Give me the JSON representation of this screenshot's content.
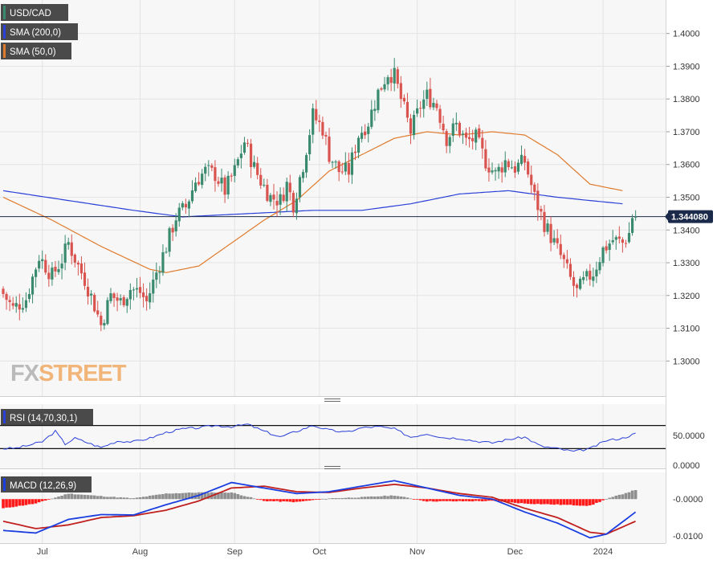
{
  "symbol_label": "USD/CAD",
  "watermark": {
    "fx": "FX",
    "street": "STREET"
  },
  "colors": {
    "bull": "#3a8a6e",
    "bear": "#d9534f",
    "sma200": "#2a40d8",
    "sma50": "#e07b2e",
    "rsi": "#2a40d8",
    "macd": "#1a3ee0",
    "signal": "#c0201e",
    "hist_pos": "#8f8f8f",
    "hist_neg": "#ff1a1a",
    "label_bg": "#4a4a4a",
    "grid": "#e4e4e4",
    "panel_bg": "#f7f7f7"
  },
  "legend": [
    {
      "text": "USD/CAD",
      "color": "#3a8a6e"
    },
    {
      "text": "SMA (200,0)",
      "color": "#2a40d8"
    },
    {
      "text": "SMA (50,0)",
      "color": "#e07b2e"
    }
  ],
  "price_tag": "1.344080",
  "rsi_label": "RSI (14,70,30,1)",
  "macd_label": "MACD (12,26,9)",
  "chart_data": [
    {
      "type": "candlestick",
      "title": "USD/CAD",
      "x_labels": [
        "Jul",
        "Aug",
        "Sep",
        "Oct",
        "Nov",
        "Dec",
        "2024"
      ],
      "y_ticks": [
        "1.4000",
        "1.3900",
        "1.3800",
        "1.3700",
        "1.3600",
        "1.3500",
        "1.3400",
        "1.3300",
        "1.3200",
        "1.3100",
        "1.3000"
      ],
      "ylim": [
        1.291,
        1.409
      ],
      "last_price": 1.34408,
      "anchors": [
        [
          0,
          1.322
        ],
        [
          4,
          1.316
        ],
        [
          8,
          1.319
        ],
        [
          12,
          1.332
        ],
        [
          16,
          1.326
        ],
        [
          19,
          1.331
        ],
        [
          21,
          1.336
        ],
        [
          24,
          1.329
        ],
        [
          26,
          1.325
        ],
        [
          29,
          1.317
        ],
        [
          31,
          1.311
        ],
        [
          34,
          1.32
        ],
        [
          37,
          1.318
        ],
        [
          40,
          1.322
        ],
        [
          43,
          1.321
        ],
        [
          45,
          1.318
        ],
        [
          48,
          1.327
        ],
        [
          51,
          1.335
        ],
        [
          54,
          1.344
        ],
        [
          57,
          1.347
        ],
        [
          60,
          1.355
        ],
        [
          63,
          1.358
        ],
        [
          66,
          1.357
        ],
        [
          69,
          1.352
        ],
        [
          72,
          1.358
        ],
        [
          75,
          1.367
        ],
        [
          78,
          1.359
        ],
        [
          80,
          1.355
        ],
        [
          83,
          1.35
        ],
        [
          86,
          1.349
        ],
        [
          88,
          1.354
        ],
        [
          90,
          1.348
        ],
        [
          93,
          1.36
        ],
        [
          96,
          1.375
        ],
        [
          99,
          1.371
        ],
        [
          101,
          1.363
        ],
        [
          104,
          1.358
        ],
        [
          107,
          1.358
        ],
        [
          110,
          1.369
        ],
        [
          113,
          1.373
        ],
        [
          116,
          1.382
        ],
        [
          119,
          1.388
        ],
        [
          121,
          1.387
        ],
        [
          123,
          1.38
        ],
        [
          126,
          1.37
        ],
        [
          129,
          1.378
        ],
        [
          131,
          1.381
        ],
        [
          134,
          1.378
        ],
        [
          137,
          1.368
        ],
        [
          140,
          1.372
        ],
        [
          143,
          1.367
        ],
        [
          146,
          1.368
        ],
        [
          149,
          1.361
        ],
        [
          152,
          1.357
        ],
        [
          155,
          1.361
        ],
        [
          158,
          1.359
        ],
        [
          161,
          1.361
        ],
        [
          164,
          1.35
        ],
        [
          167,
          1.342
        ],
        [
          170,
          1.336
        ],
        [
          173,
          1.33
        ],
        [
          175,
          1.325
        ],
        [
          177,
          1.321
        ],
        [
          179,
          1.324
        ],
        [
          182,
          1.327
        ],
        [
          185,
          1.334
        ],
        [
          188,
          1.337
        ],
        [
          191,
          1.336
        ],
        [
          193,
          1.339
        ],
        [
          194,
          1.3441
        ]
      ],
      "sma200": [
        [
          0,
          1.352
        ],
        [
          40,
          1.346
        ],
        [
          55,
          1.344
        ],
        [
          75,
          1.345
        ],
        [
          95,
          1.346
        ],
        [
          110,
          1.346
        ],
        [
          125,
          1.348
        ],
        [
          140,
          1.351
        ],
        [
          155,
          1.352
        ],
        [
          170,
          1.35
        ],
        [
          190,
          1.348
        ]
      ],
      "sma50": [
        [
          0,
          1.35
        ],
        [
          15,
          1.343
        ],
        [
          30,
          1.335
        ],
        [
          45,
          1.328
        ],
        [
          50,
          1.327
        ],
        [
          60,
          1.329
        ],
        [
          70,
          1.336
        ],
        [
          80,
          1.343
        ],
        [
          90,
          1.349
        ],
        [
          100,
          1.358
        ],
        [
          110,
          1.363
        ],
        [
          120,
          1.368
        ],
        [
          130,
          1.37
        ],
        [
          140,
          1.369
        ],
        [
          150,
          1.37
        ],
        [
          160,
          1.369
        ],
        [
          170,
          1.363
        ],
        [
          180,
          1.354
        ],
        [
          190,
          1.352
        ]
      ]
    },
    {
      "type": "line",
      "title": "RSI (14,70,30,1)",
      "y_ticks": [
        "50.0000",
        "0.0000"
      ],
      "ylim": [
        0,
        100
      ],
      "levels": [
        70,
        30
      ],
      "series": [
        {
          "values": [
            [
              0,
              30
            ],
            [
              4,
              31
            ],
            [
              8,
              36
            ],
            [
              12,
              42
            ],
            [
              16,
              60
            ],
            [
              19,
              38
            ],
            [
              22,
              48
            ],
            [
              26,
              40
            ],
            [
              30,
              32
            ],
            [
              35,
              43
            ],
            [
              40,
              42
            ],
            [
              45,
              48
            ],
            [
              50,
              58
            ],
            [
              55,
              64
            ],
            [
              60,
              66
            ],
            [
              65,
              70
            ],
            [
              70,
              68
            ],
            [
              75,
              72
            ],
            [
              80,
              60
            ],
            [
              85,
              50
            ],
            [
              90,
              60
            ],
            [
              95,
              70
            ],
            [
              100,
              62
            ],
            [
              105,
              58
            ],
            [
              110,
              66
            ],
            [
              115,
              68
            ],
            [
              120,
              64
            ],
            [
              125,
              50
            ],
            [
              130,
              56
            ],
            [
              135,
              49
            ],
            [
              140,
              48
            ],
            [
              145,
              43
            ],
            [
              150,
              40
            ],
            [
              155,
              46
            ],
            [
              160,
              50
            ],
            [
              165,
              34
            ],
            [
              170,
              30
            ],
            [
              175,
              25
            ],
            [
              180,
              30
            ],
            [
              185,
              44
            ],
            [
              190,
              48
            ],
            [
              194,
              56
            ]
          ]
        }
      ]
    },
    {
      "type": "bar+line",
      "title": "MACD (12,26,9)",
      "y_ticks": [
        "-0.0000",
        "-0.0100"
      ],
      "ylim": [
        -0.0115,
        0.0068
      ],
      "macd": [
        [
          0,
          -0.0085
        ],
        [
          10,
          -0.0092
        ],
        [
          20,
          -0.0055
        ],
        [
          30,
          -0.0042
        ],
        [
          40,
          -0.0043
        ],
        [
          50,
          -0.0015
        ],
        [
          60,
          0.001
        ],
        [
          70,
          0.0045
        ],
        [
          80,
          0.003
        ],
        [
          90,
          0.0015
        ],
        [
          100,
          0.002
        ],
        [
          110,
          0.0035
        ],
        [
          120,
          0.005
        ],
        [
          130,
          0.003
        ],
        [
          140,
          0.001
        ],
        [
          150,
          0.0
        ],
        [
          160,
          -0.0035
        ],
        [
          170,
          -0.0065
        ],
        [
          180,
          -0.0105
        ],
        [
          185,
          -0.0095
        ],
        [
          194,
          -0.0035
        ]
      ],
      "signal": [
        [
          0,
          -0.006
        ],
        [
          10,
          -0.008
        ],
        [
          20,
          -0.007
        ],
        [
          30,
          -0.005
        ],
        [
          40,
          -0.0045
        ],
        [
          50,
          -0.003
        ],
        [
          60,
          -0.0005
        ],
        [
          70,
          0.003
        ],
        [
          80,
          0.0035
        ],
        [
          90,
          0.002
        ],
        [
          100,
          0.0018
        ],
        [
          110,
          0.003
        ],
        [
          120,
          0.004
        ],
        [
          130,
          0.003
        ],
        [
          140,
          0.0015
        ],
        [
          150,
          0.0005
        ],
        [
          160,
          -0.0025
        ],
        [
          170,
          -0.005
        ],
        [
          180,
          -0.009
        ],
        [
          185,
          -0.0095
        ],
        [
          194,
          -0.006
        ]
      ],
      "histogram": [
        [
          0,
          -0.0025
        ],
        [
          10,
          -0.0012
        ],
        [
          20,
          0.0015
        ],
        [
          30,
          0.0008
        ],
        [
          40,
          0.0002
        ],
        [
          50,
          0.0015
        ],
        [
          60,
          0.0018
        ],
        [
          70,
          0.0018
        ],
        [
          80,
          -0.0005
        ],
        [
          90,
          -0.0008
        ],
        [
          100,
          0.0002
        ],
        [
          110,
          0.0005
        ],
        [
          120,
          0.001
        ],
        [
          130,
          -0.0006
        ],
        [
          140,
          -0.0006
        ],
        [
          150,
          -0.0005
        ],
        [
          160,
          -0.0012
        ],
        [
          170,
          -0.0015
        ],
        [
          180,
          -0.0018
        ],
        [
          185,
          0.0
        ],
        [
          194,
          0.0025
        ]
      ]
    }
  ]
}
